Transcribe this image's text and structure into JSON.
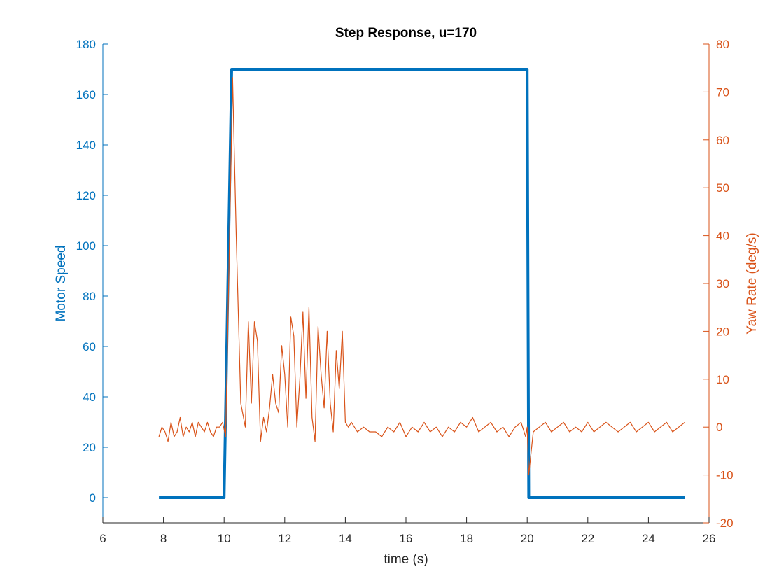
{
  "chart_data": {
    "type": "line",
    "title": "Step Response, u=170",
    "xlabel": "time (s)",
    "ylabel_left": "Motor Speed",
    "ylabel_right": "Yaw Rate (deg/s)",
    "xlim": [
      6,
      26
    ],
    "ylim_left": [
      -10,
      180
    ],
    "ylim_right": [
      -20,
      80
    ],
    "x_ticks": [
      6,
      8,
      10,
      12,
      14,
      16,
      18,
      20,
      22,
      24,
      26
    ],
    "y_left_ticks": [
      0,
      20,
      40,
      60,
      80,
      100,
      120,
      140,
      160,
      180
    ],
    "y_right_ticks": [
      -20,
      -10,
      0,
      10,
      20,
      30,
      40,
      50,
      60,
      70,
      80
    ],
    "grid": false,
    "colors": {
      "left": "#0072BD",
      "right": "#D95319",
      "axis": "#262626"
    },
    "series": [
      {
        "axis": "left",
        "x": [
          7.85,
          10.0,
          10.25,
          20.0,
          20.05,
          25.2
        ],
        "y": [
          0,
          0,
          170,
          170,
          0,
          0
        ]
      },
      {
        "axis": "right",
        "x": [
          7.85,
          7.95,
          8.05,
          8.15,
          8.25,
          8.35,
          8.45,
          8.55,
          8.65,
          8.75,
          8.85,
          8.95,
          9.05,
          9.15,
          9.25,
          9.35,
          9.45,
          9.55,
          9.65,
          9.75,
          9.85,
          9.95,
          10.05,
          10.15,
          10.28,
          10.4,
          10.55,
          10.7,
          10.8,
          10.9,
          11.0,
          11.1,
          11.2,
          11.3,
          11.4,
          11.5,
          11.6,
          11.7,
          11.8,
          11.9,
          12.0,
          12.1,
          12.2,
          12.3,
          12.4,
          12.5,
          12.6,
          12.7,
          12.8,
          12.9,
          13.0,
          13.1,
          13.2,
          13.3,
          13.4,
          13.5,
          13.6,
          13.7,
          13.8,
          13.9,
          14.0,
          14.1,
          14.2,
          14.4,
          14.6,
          14.8,
          15.0,
          15.2,
          15.4,
          15.6,
          15.8,
          16.0,
          16.2,
          16.4,
          16.6,
          16.8,
          17.0,
          17.2,
          17.4,
          17.6,
          17.8,
          18.0,
          18.2,
          18.4,
          18.6,
          18.8,
          19.0,
          19.2,
          19.4,
          19.6,
          19.8,
          19.95,
          20.0,
          20.05,
          20.2,
          20.4,
          20.6,
          20.8,
          21.0,
          21.2,
          21.4,
          21.6,
          21.8,
          22.0,
          22.2,
          22.4,
          22.6,
          22.8,
          23.0,
          23.2,
          23.4,
          23.6,
          23.8,
          24.0,
          24.2,
          24.4,
          24.6,
          24.8,
          25.0,
          25.2
        ],
        "y": [
          -2,
          0,
          -1,
          -3,
          1,
          -2,
          -1,
          2,
          -2,
          0,
          -1,
          1,
          -2,
          1,
          0,
          -1,
          1,
          -1,
          -2,
          0,
          0,
          1,
          -2,
          30,
          73,
          40,
          5,
          0,
          22,
          5,
          22,
          18,
          -3,
          2,
          -1,
          4,
          11,
          5,
          3,
          17,
          11,
          0,
          23,
          19,
          0,
          10,
          24,
          6,
          25,
          2,
          -3,
          21,
          11,
          4,
          20,
          5,
          -1,
          16,
          8,
          20,
          1,
          0,
          1,
          -1,
          0,
          -1,
          -1,
          -2,
          0,
          -1,
          1,
          -2,
          0,
          -1,
          1,
          -1,
          0,
          -2,
          0,
          -1,
          1,
          0,
          2,
          -1,
          0,
          1,
          -1,
          0,
          -2,
          0,
          1,
          -2,
          0,
          -10,
          -1,
          0,
          1,
          -1,
          0,
          1,
          -1,
          0,
          -1,
          1,
          -1,
          0,
          1,
          0,
          -1,
          0,
          1,
          -1,
          0,
          1,
          -1,
          0,
          1,
          -1,
          0,
          1
        ]
      }
    ]
  }
}
